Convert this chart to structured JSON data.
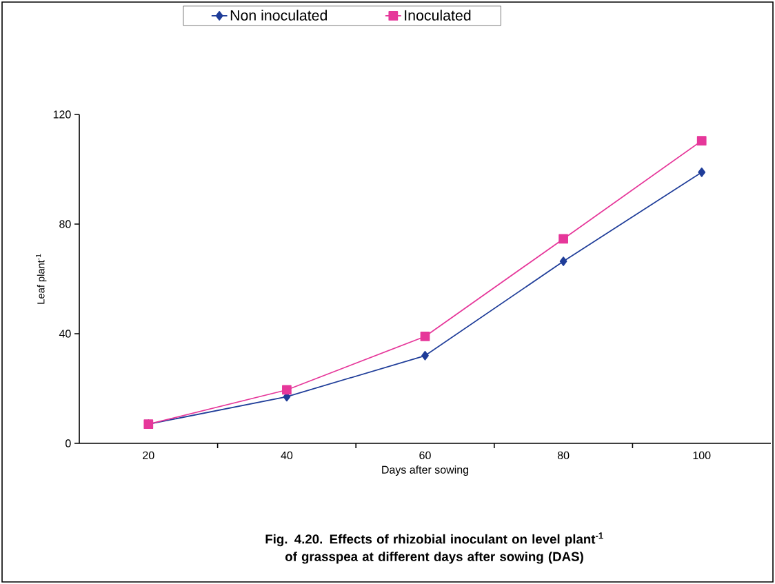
{
  "chart_data": {
    "type": "line",
    "categories": [
      "20",
      "40",
      "60",
      "80",
      "100"
    ],
    "series": [
      {
        "name": "Non inoculated",
        "color": "#1f3d99",
        "marker": "diamond",
        "values": [
          7,
          17,
          32,
          66.4,
          98.9
        ]
      },
      {
        "name": "Inoculated",
        "color": "#e6379a",
        "marker": "square",
        "values": [
          7,
          19.5,
          39,
          74.6,
          110.4
        ]
      }
    ],
    "xlabel": "Days after sowing",
    "ylabel": "Leaf plant$^{-1}$",
    "ylim": [
      0,
      120
    ],
    "yticks": [
      0,
      40,
      80,
      120
    ],
    "legend": "top",
    "annotations": [
      "Fig. 4.20. Effects of rhizobial inoculant on level plant$^{-1}$ of grasspea at different days after sowing (DAS)"
    ]
  }
}
